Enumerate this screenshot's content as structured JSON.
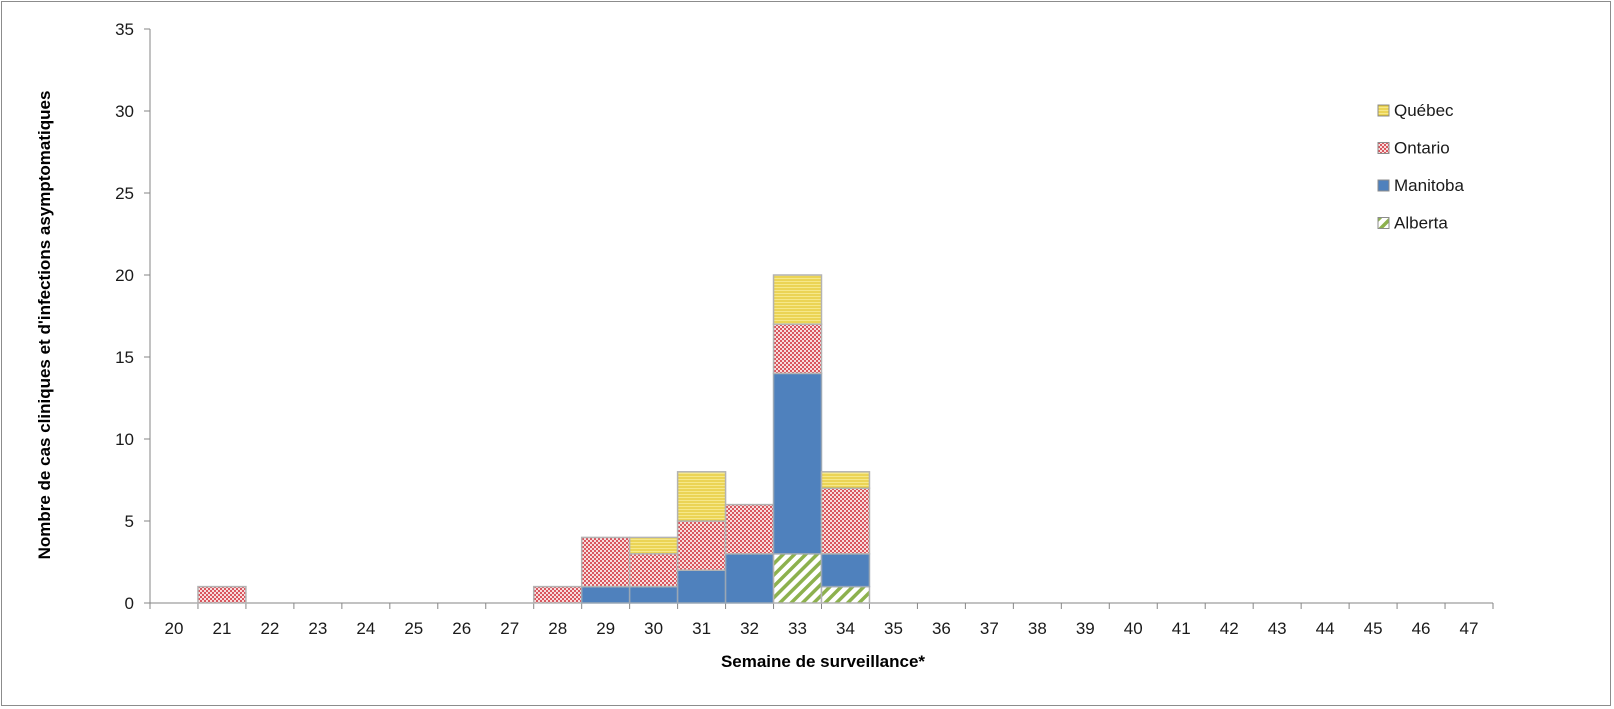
{
  "chart_data": {
    "type": "bar",
    "stacked": true,
    "title": "",
    "xlabel": "Semaine de surveillance*",
    "ylabel": "Nombre de cas cliniques et d'infections asymptomatiques",
    "ylim": [
      0,
      35
    ],
    "yticks": [
      0,
      5,
      10,
      15,
      20,
      25,
      30,
      35
    ],
    "grid": false,
    "legend_position": "right",
    "categories": [
      "20",
      "21",
      "22",
      "23",
      "24",
      "25",
      "26",
      "27",
      "28",
      "29",
      "30",
      "31",
      "32",
      "33",
      "34",
      "35",
      "36",
      "37",
      "38",
      "39",
      "40",
      "41",
      "42",
      "43",
      "44",
      "45",
      "46",
      "47"
    ],
    "series": [
      {
        "name": "Alberta",
        "pattern": "diagonal-hatch",
        "color": "#8db14e",
        "values": [
          0,
          0,
          0,
          0,
          0,
          0,
          0,
          0,
          0,
          0,
          0,
          0,
          0,
          3,
          1,
          0,
          0,
          0,
          0,
          0,
          0,
          0,
          0,
          0,
          0,
          0,
          0,
          0
        ]
      },
      {
        "name": "Manitoba",
        "pattern": "solid",
        "color": "#4f81bd",
        "values": [
          0,
          0,
          0,
          0,
          0,
          0,
          0,
          0,
          0,
          1,
          1,
          2,
          3,
          11,
          2,
          0,
          0,
          0,
          0,
          0,
          0,
          0,
          0,
          0,
          0,
          0,
          0,
          0
        ]
      },
      {
        "name": "Ontario",
        "pattern": "crosshatch",
        "color": "#d9757a",
        "values": [
          0,
          1,
          0,
          0,
          0,
          0,
          0,
          0,
          1,
          3,
          2,
          3,
          3,
          3,
          4,
          0,
          0,
          0,
          0,
          0,
          0,
          0,
          0,
          0,
          0,
          0,
          0,
          0
        ]
      },
      {
        "name": "Québec",
        "pattern": "horizontal-lines",
        "color": "#f2dc6b",
        "values": [
          0,
          0,
          0,
          0,
          0,
          0,
          0,
          0,
          0,
          0,
          1,
          3,
          0,
          3,
          1,
          0,
          0,
          0,
          0,
          0,
          0,
          0,
          0,
          0,
          0,
          0,
          0,
          0
        ]
      }
    ],
    "legend_order": [
      "Québec",
      "Ontario",
      "Manitoba",
      "Alberta"
    ]
  }
}
